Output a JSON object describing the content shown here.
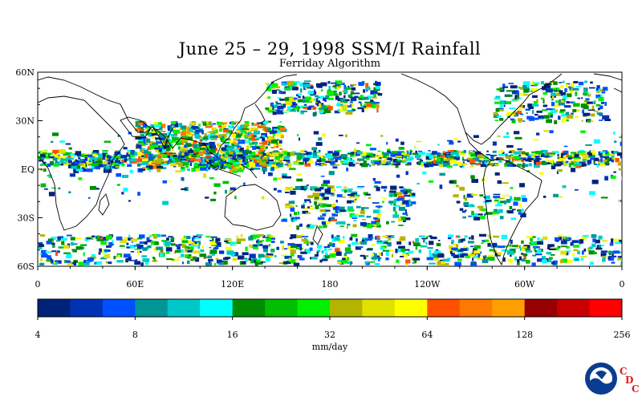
{
  "title": "June 25 – 29, 1998 SSM/I Rainfall",
  "subtitle": "Ferriday Algorithm",
  "map": {
    "lat_labels": [
      "60N",
      "30N",
      "EQ",
      "30S",
      "60S"
    ],
    "lat_values": [
      60,
      30,
      0,
      -30,
      -60
    ],
    "lon_labels": [
      "0",
      "60E",
      "120E",
      "180",
      "120W",
      "60W",
      "0"
    ],
    "lon_values": [
      0,
      60,
      120,
      180,
      240,
      300,
      360
    ],
    "lat_range": [
      -60,
      60
    ],
    "lon_range": [
      0,
      360
    ]
  },
  "colorbar": {
    "tick_labels": [
      "4",
      "8",
      "16",
      "32",
      "64",
      "128",
      "256"
    ],
    "unit": "mm/day",
    "colors": [
      "#00237a",
      "#0032b4",
      "#0050ff",
      "#009696",
      "#00c8c8",
      "#00ffff",
      "#008c00",
      "#00be00",
      "#00f000",
      "#b4b400",
      "#e1e100",
      "#ffff00",
      "#ff5000",
      "#ff7800",
      "#ffa000",
      "#960000",
      "#c80000",
      "#ff0000"
    ]
  },
  "logo": {
    "name": "NOAA",
    "c1": "C",
    "d": "D",
    "c2": "C"
  }
}
